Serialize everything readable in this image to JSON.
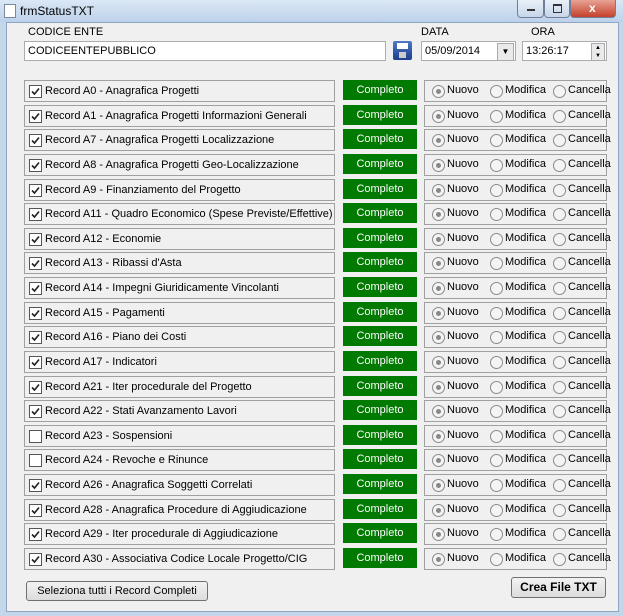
{
  "window": {
    "title": "frmStatusTXT"
  },
  "header": {
    "codice_label": "CODICE ENTE",
    "codice_value": "CODICEENTEPUBBLICO",
    "data_label": "DATA",
    "data_value": "05/09/2014",
    "ora_label": "ORA",
    "ora_value": "13:26:17"
  },
  "records": [
    {
      "label": "Record A0 - Anagrafica Progetti",
      "checked": true,
      "status": "Completo",
      "options": [
        "Nuovo",
        "Modifica",
        "Cancella"
      ],
      "selected": 0
    },
    {
      "label": "Record A1 - Anagrafica Progetti Informazioni Generali",
      "checked": true,
      "status": "Completo",
      "options": [
        "Nuovo",
        "Modifica",
        "Cancella"
      ],
      "selected": 0
    },
    {
      "label": "Record A7 - Anagrafica Progetti Localizzazione",
      "checked": true,
      "status": "Completo",
      "options": [
        "Nuovo",
        "Modifica",
        "Cancella"
      ],
      "selected": 0
    },
    {
      "label": "Record A8 - Anagrafica Progetti Geo-Localizzazione",
      "checked": true,
      "status": "Completo",
      "options": [
        "Nuovo",
        "Modifica",
        "Cancella"
      ],
      "selected": 0
    },
    {
      "label": "Record A9 - Finanziamento del Progetto",
      "checked": true,
      "status": "Completo",
      "options": [
        "Nuovo",
        "Modifica",
        "Cancella"
      ],
      "selected": 0
    },
    {
      "label": "Record A11 - Quadro Economico (Spese Previste/Effettive)",
      "checked": true,
      "status": "Completo",
      "options": [
        "Nuovo",
        "Modifica",
        "Cancella"
      ],
      "selected": 0
    },
    {
      "label": "Record A12 - Economie",
      "checked": true,
      "status": "Completo",
      "options": [
        "Nuovo",
        "Modifica",
        "Cancella"
      ],
      "selected": 0
    },
    {
      "label": "Record A13 - Ribassi d'Asta",
      "checked": true,
      "status": "Completo",
      "options": [
        "Nuovo",
        "Modifica",
        "Cancella"
      ],
      "selected": 0
    },
    {
      "label": "Record A14 - Impegni Giuridicamente Vincolanti",
      "checked": true,
      "status": "Completo",
      "options": [
        "Nuovo",
        "Modifica",
        "Cancella"
      ],
      "selected": 0
    },
    {
      "label": "Record A15 - Pagamenti",
      "checked": true,
      "status": "Completo",
      "options": [
        "Nuovo",
        "Modifica",
        "Cancella"
      ],
      "selected": 0
    },
    {
      "label": "Record A16 - Piano dei Costi",
      "checked": true,
      "status": "Completo",
      "options": [
        "Nuovo",
        "Modifica",
        "Cancella"
      ],
      "selected": 0
    },
    {
      "label": "Record A17 - Indicatori",
      "checked": true,
      "status": "Completo",
      "options": [
        "Nuovo",
        "Modifica",
        "Cancella"
      ],
      "selected": 0
    },
    {
      "label": "Record A21 - Iter procedurale del Progetto",
      "checked": true,
      "status": "Completo",
      "options": [
        "Nuovo",
        "Modifica",
        "Cancella"
      ],
      "selected": 0
    },
    {
      "label": "Record A22 - Stati Avanzamento Lavori",
      "checked": true,
      "status": "Completo",
      "options": [
        "Nuovo",
        "Modifica",
        "Cancella"
      ],
      "selected": 0
    },
    {
      "label": "Record A23 - Sospensioni",
      "checked": false,
      "status": "Completo",
      "options": [
        "Nuovo",
        "Modifica",
        "Cancella"
      ],
      "selected": 0
    },
    {
      "label": "Record A24 - Revoche e Rinunce",
      "checked": false,
      "status": "Completo",
      "options": [
        "Nuovo",
        "Modifica",
        "Cancella"
      ],
      "selected": 0
    },
    {
      "label": "Record A26 - Anagrafica Soggetti Correlati",
      "checked": true,
      "status": "Completo",
      "options": [
        "Nuovo",
        "Modifica",
        "Cancella"
      ],
      "selected": 0
    },
    {
      "label": "Record A28 - Anagrafica Procedure di Aggiudicazione",
      "checked": true,
      "status": "Completo",
      "options": [
        "Nuovo",
        "Modifica",
        "Cancella"
      ],
      "selected": 0
    },
    {
      "label": "Record A29 - Iter procedurale di Aggiudicazione",
      "checked": true,
      "status": "Completo",
      "options": [
        "Nuovo",
        "Modifica",
        "Cancella"
      ],
      "selected": 0
    },
    {
      "label": "Record A30 - Associativa Codice Locale Progetto/CIG",
      "checked": true,
      "status": "Completo",
      "options": [
        "Nuovo",
        "Modifica",
        "Cancella"
      ],
      "selected": 0
    }
  ],
  "buttons": {
    "select_all": "Seleziona tutti i Record Completi",
    "create": "Crea File TXT"
  }
}
